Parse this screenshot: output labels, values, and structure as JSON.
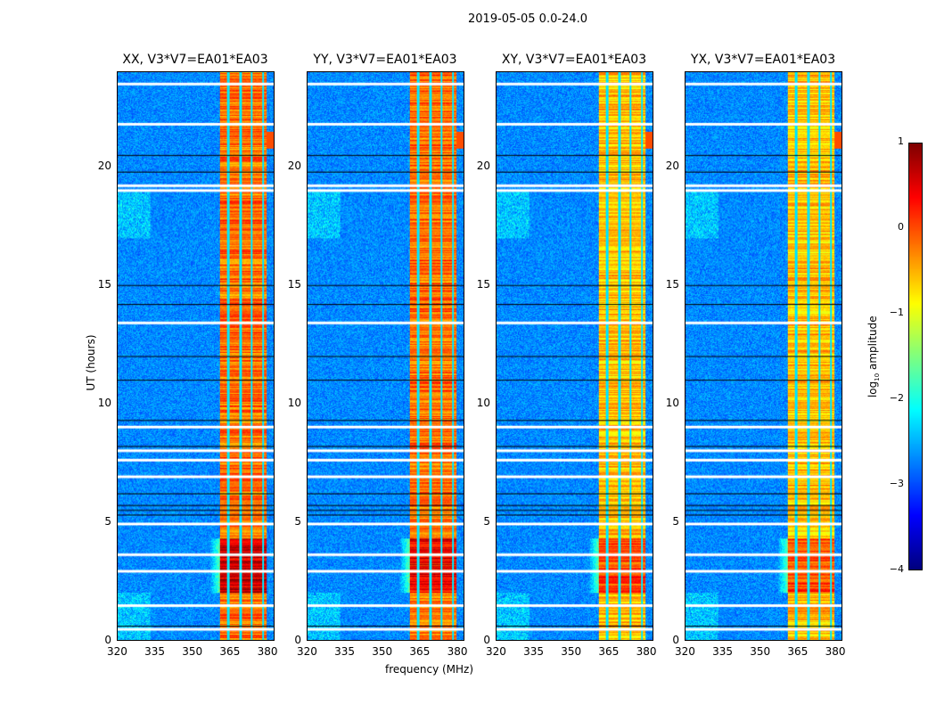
{
  "chart_data": {
    "type": "heatmap",
    "title": "2019-05-05 0.0-24.0",
    "xlabel": "frequency (MHz)",
    "ylabel": "UT (hours)",
    "xlim": [
      320,
      383
    ],
    "ylim": [
      0,
      24
    ],
    "xticks": [
      "320",
      "335",
      "350",
      "365",
      "380"
    ],
    "yticks": [
      "0",
      "5",
      "10",
      "15",
      "20"
    ],
    "panels": [
      {
        "title": "XX, V3*V7=EA01*EA03"
      },
      {
        "title": "YY, V3*V7=EA01*EA03"
      },
      {
        "title": "XY, V3*V7=EA01*EA03"
      },
      {
        "title": "YX, V3*V7=EA01*EA03"
      }
    ],
    "rfi_band_mhz": [
      361,
      380
    ],
    "band_channel_gaps_mhz": [
      364.5,
      369.5,
      374,
      378.5
    ],
    "flagged_hours_white": [
      0.45,
      1.45,
      2.9,
      3.6,
      4.9,
      6.9,
      7.6,
      8.0,
      9.0,
      13.4,
      19.0,
      19.2,
      21.8,
      23.5
    ],
    "noisy_hours_black": [
      0.6,
      5.3,
      5.5,
      5.7,
      6.2,
      8.2,
      9.3,
      11.0,
      12.0,
      14.2,
      15.0,
      19.8,
      20.5
    ],
    "colorbar": {
      "label": "log10 amplitude",
      "label_base": "log",
      "label_sub": "10",
      "label_rest": " amplitude",
      "range": [
        -4,
        1
      ],
      "ticks": [
        "1",
        "0",
        "−1",
        "−2",
        "−3",
        "−4"
      ],
      "colormap": "jet"
    }
  }
}
